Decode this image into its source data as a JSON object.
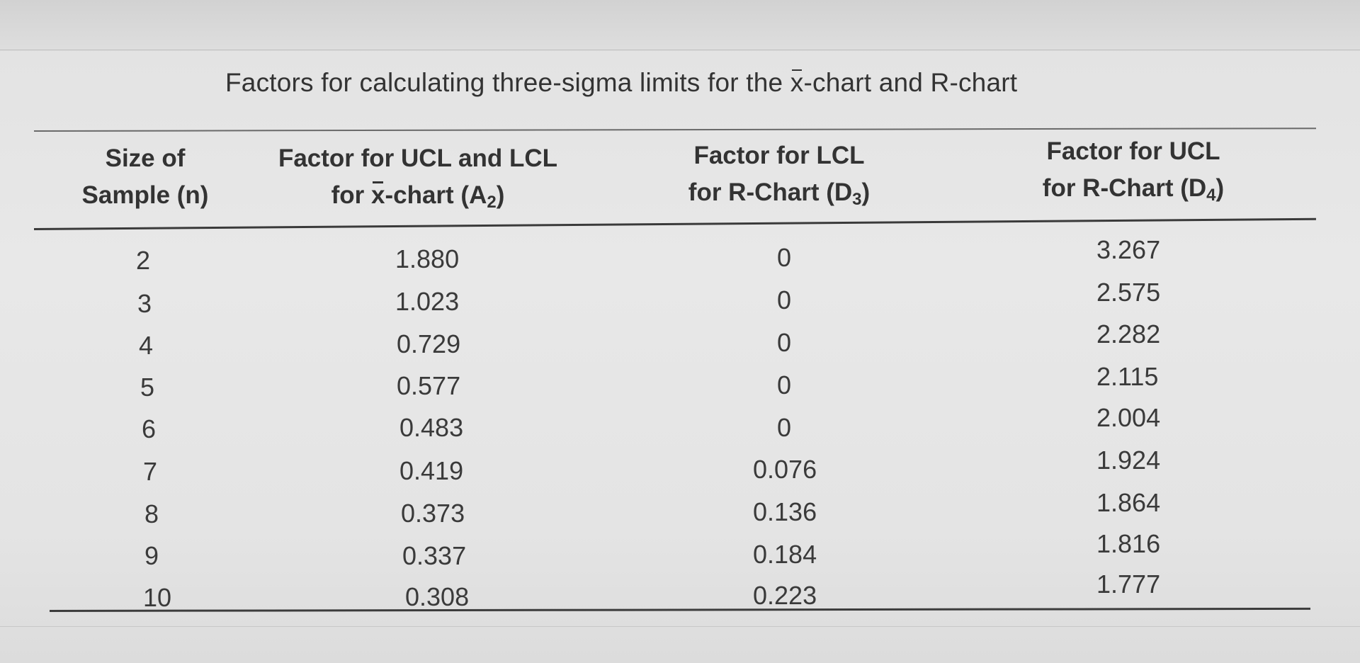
{
  "caption": {
    "pre": "Factors for calculating three-sigma limits for the ",
    "xbar": "x",
    "post": "-chart and R-chart"
  },
  "headers": {
    "col1": {
      "line1": "Size of",
      "line2": "Sample (n)"
    },
    "col2": {
      "line1": "Factor for UCL and LCL",
      "line2_pre": "for ",
      "line2_xbar": "x",
      "line2_mid": "-chart (A",
      "line2_sub": "2",
      "line2_post": ")"
    },
    "col3": {
      "line1": "Factor for LCL",
      "line2_pre": "for R-Chart (D",
      "line2_sub": "3",
      "line2_post": ")"
    },
    "col4": {
      "line1": "Factor for UCL",
      "line2_pre": "for R-Chart (D",
      "line2_sub": "4",
      "line2_post": ")"
    }
  },
  "rows": [
    {
      "n": "2",
      "a2": "1.880",
      "d3": "0",
      "d4": "3.267"
    },
    {
      "n": "3",
      "a2": "1.023",
      "d3": "0",
      "d4": "2.575"
    },
    {
      "n": "4",
      "a2": "0.729",
      "d3": "0",
      "d4": "2.282"
    },
    {
      "n": "5",
      "a2": "0.577",
      "d3": "0",
      "d4": "2.115"
    },
    {
      "n": "6",
      "a2": "0.483",
      "d3": "0",
      "d4": "2.004"
    },
    {
      "n": "7",
      "a2": "0.419",
      "d3": "0.076",
      "d4": "1.924"
    },
    {
      "n": "8",
      "a2": "0.373",
      "d3": "0.136",
      "d4": "1.864"
    },
    {
      "n": "9",
      "a2": "0.337",
      "d3": "0.184",
      "d4": "1.816"
    },
    {
      "n": "10",
      "a2": "0.308",
      "d3": "0.223",
      "d4": "1.777"
    }
  ]
}
